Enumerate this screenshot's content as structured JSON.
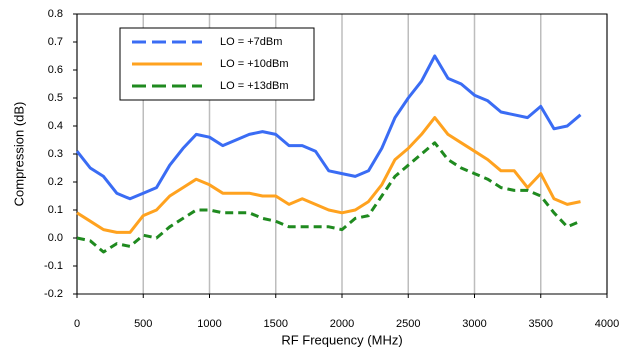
{
  "chart_data": {
    "type": "line",
    "x_label": "RF Frequency (MHz)",
    "y_label": "Compression (dB)",
    "x": [
      0,
      100,
      200,
      300,
      400,
      500,
      600,
      700,
      800,
      900,
      1000,
      1100,
      1200,
      1300,
      1400,
      1500,
      1600,
      1700,
      1800,
      1900,
      2000,
      2100,
      2200,
      2300,
      2400,
      2500,
      2600,
      2700,
      2800,
      2900,
      3000,
      3100,
      3200,
      3300,
      3400,
      3500,
      3600,
      3700,
      3800
    ],
    "series": [
      {
        "name": "LO = +7dBm",
        "color": "#3a6cf4",
        "line_style": "solid",
        "legend_style": "dashed",
        "values": [
          0.31,
          0.25,
          0.22,
          0.16,
          0.14,
          0.16,
          0.18,
          0.26,
          0.32,
          0.37,
          0.36,
          0.33,
          0.35,
          0.37,
          0.38,
          0.37,
          0.33,
          0.33,
          0.31,
          0.24,
          0.23,
          0.22,
          0.24,
          0.32,
          0.43,
          0.5,
          0.56,
          0.65,
          0.57,
          0.55,
          0.51,
          0.49,
          0.45,
          0.44,
          0.43,
          0.47,
          0.39,
          0.4,
          0.44
        ]
      },
      {
        "name": "LO = +10dBm",
        "color": "#ffa21f",
        "line_style": "solid",
        "legend_style": "solid",
        "values": [
          0.09,
          0.06,
          0.03,
          0.02,
          0.02,
          0.08,
          0.1,
          0.15,
          0.18,
          0.21,
          0.19,
          0.16,
          0.16,
          0.16,
          0.15,
          0.15,
          0.12,
          0.14,
          0.12,
          0.1,
          0.09,
          0.1,
          0.13,
          0.19,
          0.28,
          0.32,
          0.37,
          0.43,
          0.37,
          0.34,
          0.31,
          0.28,
          0.24,
          0.24,
          0.18,
          0.23,
          0.14,
          0.12,
          0.13
        ]
      },
      {
        "name": "LO = +13dBm",
        "color": "#1f8a1f",
        "line_style": "dashed",
        "legend_style": "dashed",
        "values": [
          0,
          -0.01,
          -0.05,
          -0.02,
          -0.03,
          0.01,
          0,
          0.04,
          0.07,
          0.1,
          0.1,
          0.09,
          0.09,
          0.09,
          0.07,
          0.06,
          0.04,
          0.04,
          0.04,
          0.04,
          0.03,
          0.07,
          0.08,
          0.15,
          0.22,
          0.26,
          0.3,
          0.34,
          0.28,
          0.25,
          0.23,
          0.21,
          0.18,
          0.17,
          0.17,
          0.15,
          0.09,
          0.04,
          0.06
        ]
      }
    ],
    "xlim": [
      0,
      4000
    ],
    "xticks": [
      0,
      500,
      1000,
      1500,
      2000,
      2500,
      3000,
      3500,
      4000
    ],
    "ylim": [
      -0.2,
      0.8
    ],
    "yticks": [
      -0.2,
      -0.1,
      {
        "value": 0,
        "label": "0.0"
      },
      0.1,
      0.2,
      0.3,
      0.4,
      0.5,
      0.6,
      0.7,
      0.8
    ],
    "x_grid": true,
    "legend": "upper left"
  }
}
